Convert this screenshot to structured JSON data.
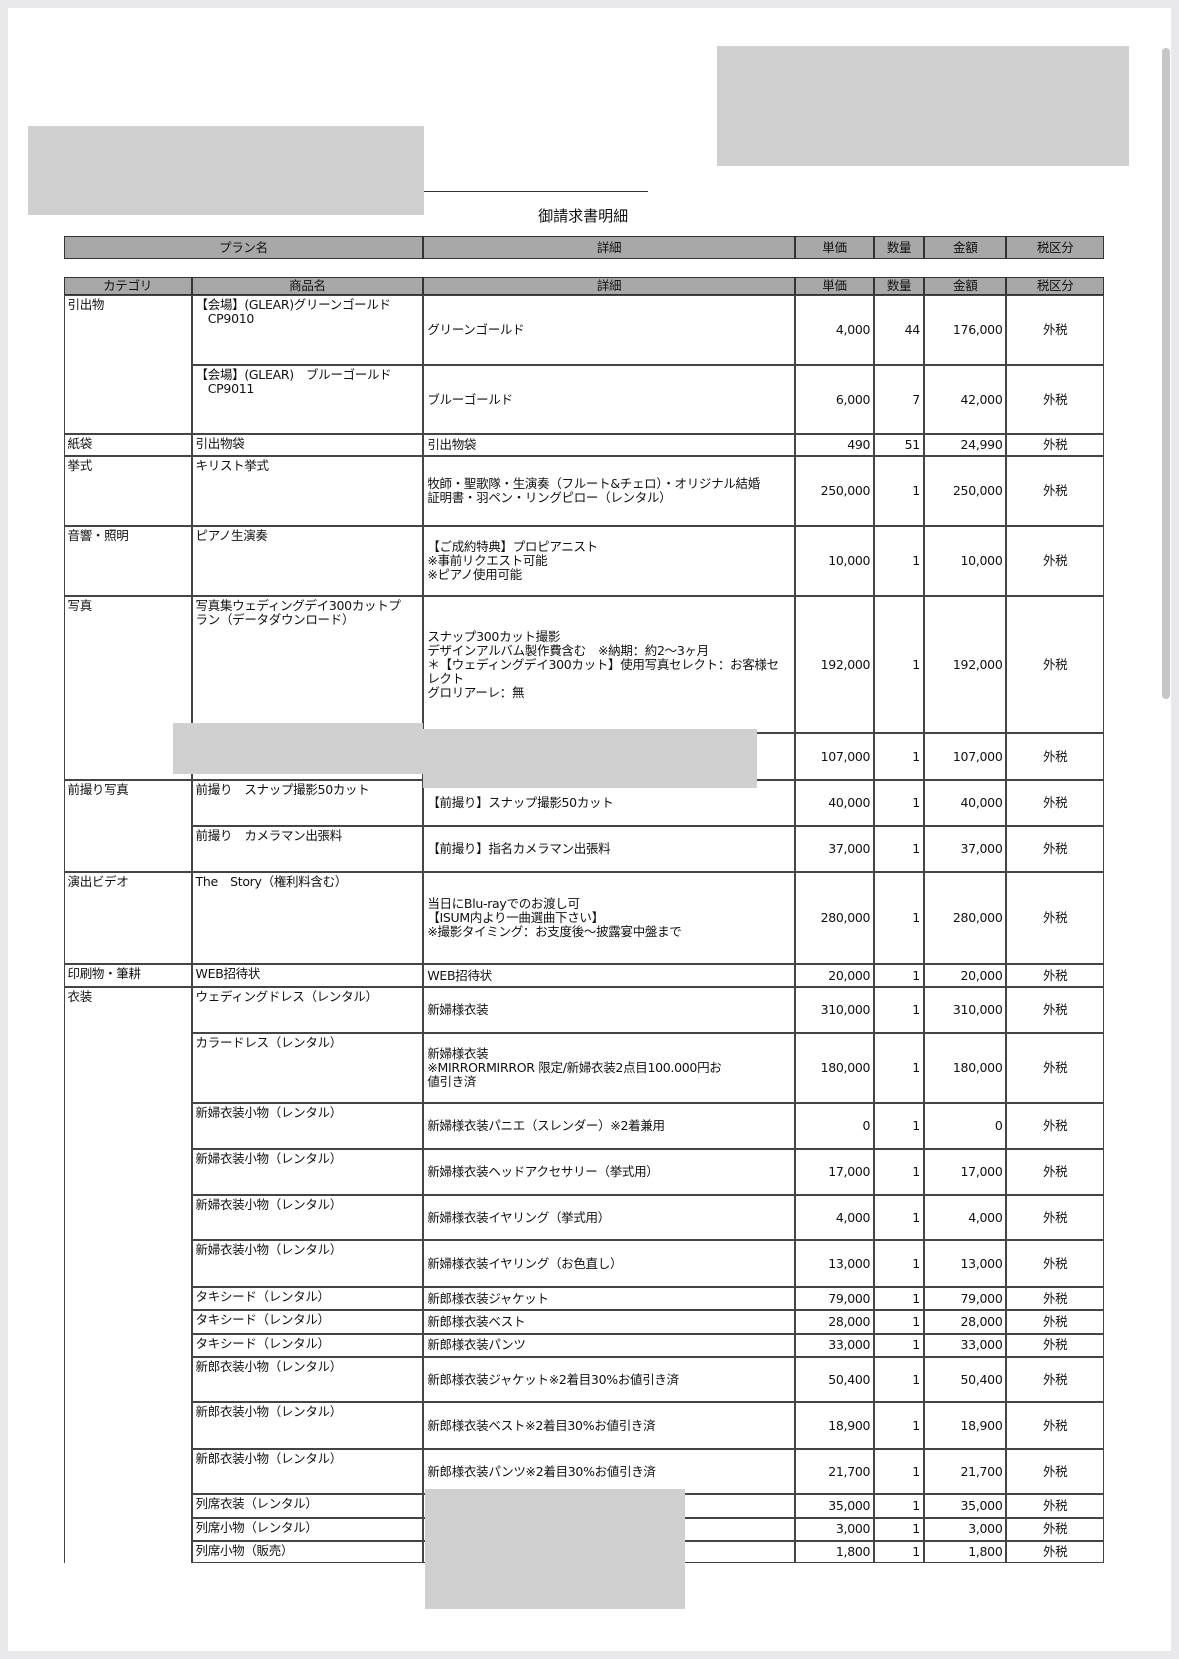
{
  "title": "御請求書明細",
  "plan_header": [
    "プラン名",
    "詳細",
    "単価",
    "数量",
    "金額",
    "税区分"
  ],
  "item_header": [
    "カテゴリ",
    "商品名",
    "詳細",
    "単価",
    "数量",
    "金額",
    "税区分"
  ],
  "categories": [
    {
      "name": "引出物",
      "rows": [
        0,
        1
      ]
    },
    {
      "name": "紙袋",
      "rows": [
        2,
        2
      ]
    },
    {
      "name": "挙式",
      "rows": [
        3,
        3
      ]
    },
    {
      "name": "音響・照明",
      "rows": [
        4,
        4
      ]
    },
    {
      "name": "写真",
      "rows": [
        5,
        6
      ]
    },
    {
      "name": "前撮り写真",
      "rows": [
        7,
        8
      ]
    },
    {
      "name": "演出ビデオ",
      "rows": [
        9,
        9
      ]
    },
    {
      "name": "印刷物・筆耕",
      "rows": [
        10,
        10
      ]
    },
    {
      "name": "衣装",
      "rows": [
        11,
        25
      ]
    }
  ],
  "rows": [
    {
      "product": "【会場】(GLEAR)グリーンゴールド\n　CP9010",
      "detail": "グリーンゴールド",
      "unit": "4,000",
      "qty": "44",
      "amount": "176,000",
      "tax": "外税"
    },
    {
      "product": "【会場】(GLEAR)　ブルーゴールド\n　CP9011",
      "detail": "ブルーゴールド",
      "unit": "6,000",
      "qty": "7",
      "amount": "42,000",
      "tax": "外税"
    },
    {
      "product": "引出物袋",
      "detail": "引出物袋",
      "unit": "490",
      "qty": "51",
      "amount": "24,990",
      "tax": "外税"
    },
    {
      "product": "キリスト挙式",
      "detail": "牧師・聖歌隊・生演奏（フルート&チェロ）・オリジナル結婚\n証明書・羽ペン・リングピロー（レンタル）",
      "unit": "250,000",
      "qty": "1",
      "amount": "250,000",
      "tax": "外税"
    },
    {
      "product": "ピアノ生演奏",
      "detail": "【ご成約特典】プロピアニスト\n※事前リクエスト可能\n※ピアノ使用可能",
      "unit": "10,000",
      "qty": "1",
      "amount": "10,000",
      "tax": "外税"
    },
    {
      "product": "写真集ウェディングデイ300カットプ\nラン（データダウンロード）",
      "detail": "スナップ300カット撮影\nデザインアルバム製作費含む　※納期：約2～3ヶ月\n＊【ウェディングデイ300カット】使用写真セレクト：お客様セ\nレクト\nグロリアーレ：無",
      "unit": "192,000",
      "qty": "1",
      "amount": "192,000",
      "tax": "外税"
    },
    {
      "product": "",
      "detail": "",
      "unit": "107,000",
      "qty": "1",
      "amount": "107,000",
      "tax": "外税"
    },
    {
      "product": "前撮り　スナップ撮影50カット",
      "detail": "【前撮り】スナップ撮影50カット",
      "unit": "40,000",
      "qty": "1",
      "amount": "40,000",
      "tax": "外税"
    },
    {
      "product": "前撮り　カメラマン出張料",
      "detail": "【前撮り】指名カメラマン出張料",
      "unit": "37,000",
      "qty": "1",
      "amount": "37,000",
      "tax": "外税"
    },
    {
      "product": "The　Story（権利料含む）",
      "detail": "当日にBlu-rayでのお渡し可\n【ISUM内より一曲選曲下さい】\n※撮影タイミング：お支度後～披露宴中盤まで",
      "unit": "280,000",
      "qty": "1",
      "amount": "280,000",
      "tax": "外税"
    },
    {
      "product": "WEB招待状",
      "detail": "WEB招待状",
      "unit": "20,000",
      "qty": "1",
      "amount": "20,000",
      "tax": "外税"
    },
    {
      "product": "ウェディングドレス（レンタル）",
      "detail": "新婦様衣装",
      "unit": "310,000",
      "qty": "1",
      "amount": "310,000",
      "tax": "外税"
    },
    {
      "product": "カラードレス（レンタル）",
      "detail": "新婦様衣装\n※MIRRORMIRROR 限定/新婦衣装2点目100.000円お\n値引き済",
      "unit": "180,000",
      "qty": "1",
      "amount": "180,000",
      "tax": "外税"
    },
    {
      "product": "新婦衣装小物（レンタル）",
      "detail": "新婦様衣装パニエ（スレンダー）※2着兼用",
      "unit": "0",
      "qty": "1",
      "amount": "0",
      "tax": "外税"
    },
    {
      "product": "新婦衣装小物（レンタル）",
      "detail": "新婦様衣装ヘッドアクセサリー（挙式用）",
      "unit": "17,000",
      "qty": "1",
      "amount": "17,000",
      "tax": "外税"
    },
    {
      "product": "新婦衣装小物（レンタル）",
      "detail": "新婦様衣装イヤリング（挙式用）",
      "unit": "4,000",
      "qty": "1",
      "amount": "4,000",
      "tax": "外税"
    },
    {
      "product": "新婦衣装小物（レンタル）",
      "detail": "新婦様衣装イヤリング（お色直し）",
      "unit": "13,000",
      "qty": "1",
      "amount": "13,000",
      "tax": "外税"
    },
    {
      "product": "タキシード（レンタル）",
      "detail": "新郎様衣装ジャケット",
      "unit": "79,000",
      "qty": "1",
      "amount": "79,000",
      "tax": "外税"
    },
    {
      "product": "タキシード（レンタル）",
      "detail": "新郎様衣装ベスト",
      "unit": "28,000",
      "qty": "1",
      "amount": "28,000",
      "tax": "外税"
    },
    {
      "product": "タキシード（レンタル）",
      "detail": "新郎様衣装パンツ",
      "unit": "33,000",
      "qty": "1",
      "amount": "33,000",
      "tax": "外税"
    },
    {
      "product": "新郎衣装小物（レンタル）",
      "detail": "新郎様衣装ジャケット※2着目30%お値引き済",
      "unit": "50,400",
      "qty": "1",
      "amount": "50,400",
      "tax": "外税"
    },
    {
      "product": "新郎衣装小物（レンタル）",
      "detail": "新郎様衣装ベスト※2着目30%お値引き済",
      "unit": "18,900",
      "qty": "1",
      "amount": "18,900",
      "tax": "外税"
    },
    {
      "product": "新郎衣装小物（レンタル）",
      "detail": "新郎様衣装パンツ※2着目30%お値引き済",
      "unit": "21,700",
      "qty": "1",
      "amount": "21,700",
      "tax": "外税"
    },
    {
      "product": "列席衣装（レンタル）",
      "detail": "",
      "unit": "35,000",
      "qty": "1",
      "amount": "35,000",
      "tax": "外税"
    },
    {
      "product": "列席小物（レンタル）",
      "detail": "",
      "unit": "3,000",
      "qty": "1",
      "amount": "3,000",
      "tax": "外税"
    },
    {
      "product": "列席小物（販売）",
      "detail": "",
      "unit": "1,800",
      "qty": "1",
      "amount": "1,800",
      "tax": "外税"
    }
  ]
}
